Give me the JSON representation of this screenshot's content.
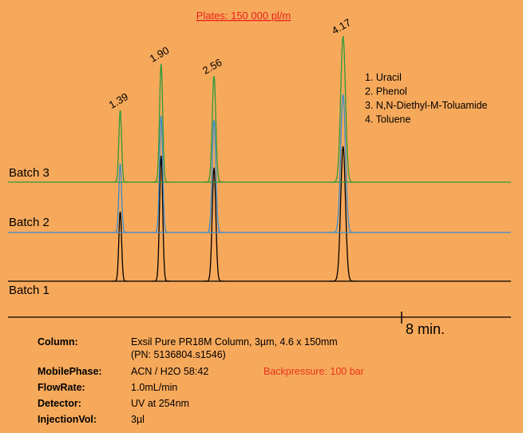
{
  "chart_data": {
    "type": "chromatogram",
    "title": "Plates: 150 000 pl/m",
    "peaks": [
      1.39,
      {
        "value": 1.9,
        "label": "1.90"
      },
      2.56,
      4.17
    ],
    "series": [
      {
        "name": "Batch 1",
        "color": "#000000",
        "values": [
          87,
          157,
          142,
          169
        ]
      },
      {
        "name": "Batch 2",
        "color": "#3a8ccc",
        "values": [
          86,
          146,
          141,
          173
        ]
      },
      {
        "name": "Batch 3",
        "color": "#2e9a3a",
        "values": [
          90,
          148,
          133,
          183
        ]
      }
    ],
    "x_axis_label": "8 min.",
    "compounds": [
      "1. Uracil",
      "2. Phenol",
      "3. N,N-Diethyl-M-Toluamide",
      "4. Toluene"
    ],
    "info": [
      {
        "label": "Column:",
        "value": [
          "Exsil Pure PR18M Column, 3µm, 4.6 x 150mm",
          "(PN: 5136804.s1546)"
        ]
      },
      {
        "label": "MobilePhase:",
        "value": [
          "ACN / H2O  58:42"
        ],
        "note": "Backpressure: 100 bar"
      },
      {
        "label": "FlowRate:",
        "value": [
          "1.0mL/min"
        ]
      },
      {
        "label": "Detector:",
        "value": [
          "UV at 254nm"
        ]
      },
      {
        "label": "InjectionVol:",
        "value": [
          "3µl"
        ]
      }
    ]
  }
}
